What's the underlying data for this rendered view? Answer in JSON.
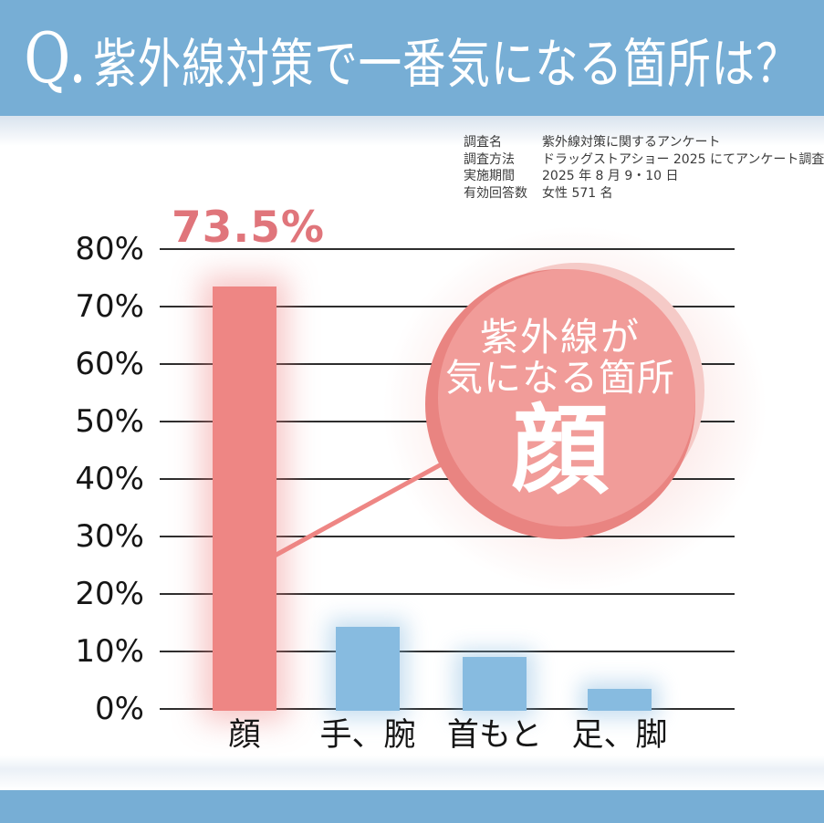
{
  "header": {
    "title_prefix": "Q.",
    "title": "紫外線対策で一番気になる箇所は？"
  },
  "survey": {
    "rows": [
      {
        "label": "調査名",
        "value": "紫外線対策に関するアンケート"
      },
      {
        "label": "調査方法",
        "value": "ドラッグストアショー 2025 にてアンケート調査"
      },
      {
        "label": "実施期間",
        "value": "2025 年 8 月 9・10 日"
      },
      {
        "label": "有効回答数",
        "value": "女性 571 名"
      }
    ]
  },
  "chart_data": {
    "type": "bar",
    "title": "Q. 紫外線対策で一番気になる箇所は？",
    "categories": [
      "顔",
      "手、腕",
      "首もと",
      "足、脚"
    ],
    "values": [
      73.5,
      14.3,
      9.0,
      3.5
    ],
    "unit": "%",
    "ylim": [
      0,
      80
    ],
    "yticks": [
      0,
      10,
      20,
      30,
      40,
      50,
      60,
      70,
      80
    ],
    "grid": true,
    "legend": false,
    "highlight_index": 0,
    "highlight_label": "73.5%",
    "bar_colors": [
      "#ee8684",
      "#87bbe0",
      "#87bbe0",
      "#87bbe0"
    ]
  },
  "callout": {
    "line1": "紫外線が",
    "line2": "気になる箇所",
    "big_label": "顔"
  },
  "colors": {
    "band_blue": "#77aed5",
    "title_text": "#ffffff",
    "info_text": "#3a3a3a",
    "grid_line": "#2d2d2d",
    "axis_text": "#161616",
    "value_label": "#e0757b",
    "connector": "#ee8684",
    "circle_back": "#f5cac7",
    "circle_rim": "#e98481",
    "circle_fill": "#f19c99",
    "callout_text": "#ffffff"
  }
}
